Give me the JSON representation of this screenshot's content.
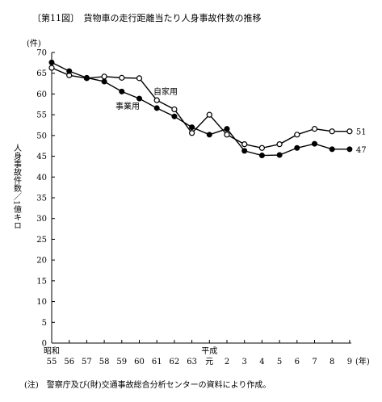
{
  "chart_data": {
    "type": "line",
    "title": "〔第11図〕　貨物車の走行距離当たり人身事故件数の推移",
    "ylabel_unit": "(件)",
    "ylabel": "人身事故件数／1億キロ",
    "xlabel_unit": "(年)",
    "ylim": [
      0,
      70
    ],
    "yticks": [
      0,
      5,
      10,
      15,
      20,
      25,
      30,
      35,
      40,
      45,
      50,
      55,
      60,
      65,
      70
    ],
    "categories": [
      "55",
      "56",
      "57",
      "58",
      "59",
      "60",
      "61",
      "62",
      "63",
      "元",
      "2",
      "3",
      "4",
      "5",
      "6",
      "7",
      "8",
      "9"
    ],
    "era_labels": [
      {
        "at_index": 0,
        "text": "昭和"
      },
      {
        "at_index": 9,
        "text": "平成"
      }
    ],
    "series": [
      {
        "name": "自家用",
        "marker": "open",
        "values": [
          66.3,
          64.5,
          63.8,
          64.2,
          63.9,
          63.8,
          58.5,
          56.3,
          50.6,
          55.0,
          50.2,
          47.9,
          47.0,
          47.9,
          50.2,
          51.6,
          51.0,
          51.0
        ],
        "end_label": "51"
      },
      {
        "name": "事業用",
        "marker": "filled",
        "values": [
          67.6,
          65.5,
          63.9,
          63.0,
          60.6,
          58.9,
          56.6,
          54.6,
          52.0,
          50.2,
          51.6,
          46.3,
          45.2,
          45.3,
          47.0,
          48.0,
          46.7,
          46.7
        ],
        "end_label": "47"
      }
    ],
    "grid": false
  },
  "note": "(注)　警察庁及び(財)交通事故総合分析センターの資料により作成。"
}
